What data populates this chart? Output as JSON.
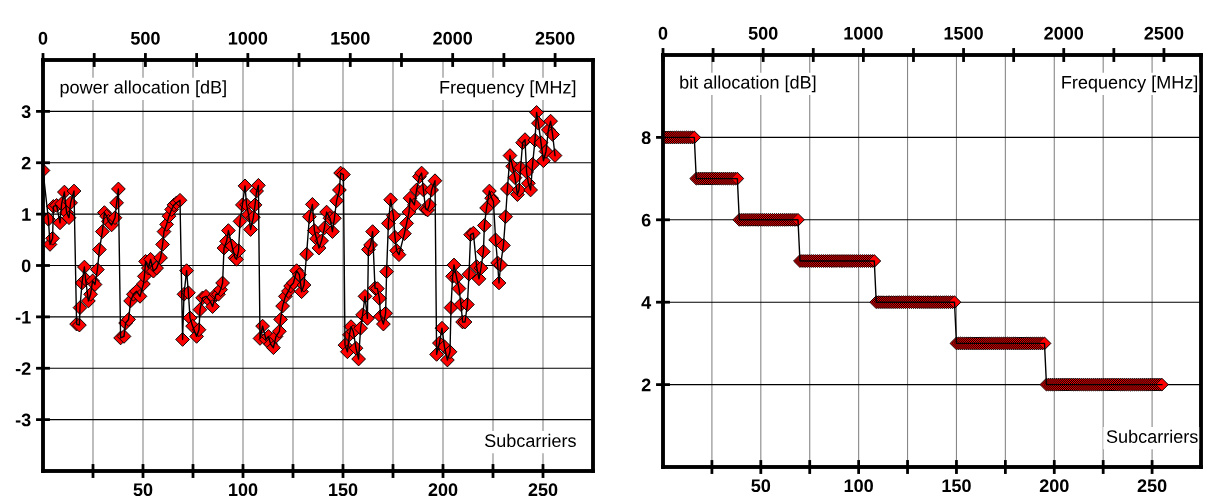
{
  "chart_data": [
    {
      "type": "line",
      "ylabel": "power allocation [dB]",
      "x2label": "Frequency [MHz]",
      "xlabel": "Subcarriers",
      "xlim": [
        0,
        275
      ],
      "xticks": [
        {
          "value": 25,
          "label": null
        },
        50,
        {
          "value": 75,
          "label": null
        },
        100,
        {
          "value": 125,
          "label": null
        },
        150,
        {
          "value": 175,
          "label": null
        },
        200,
        {
          "value": 225,
          "label": null
        },
        250
      ],
      "x2lim": [
        0,
        2685
      ],
      "x2ticks": [
        0,
        {
          "value": 250,
          "label": null
        },
        500,
        {
          "value": 750,
          "label": null
        },
        1000,
        {
          "value": 1250,
          "label": null
        },
        1500,
        {
          "value": 1750,
          "label": null
        },
        2000,
        {
          "value": 2250,
          "label": null
        },
        2500
      ],
      "ylim": [
        -4,
        4
      ],
      "yticks": [
        -3,
        -2,
        -1,
        0,
        1,
        2,
        3
      ],
      "grid": true,
      "marker": "diamond",
      "line_style": "solid",
      "series": [
        {
          "color": "#ff0000",
          "x": [
            0,
            2.7,
            3.5,
            4.8,
            5.2,
            6.8,
            8.5,
            9.3,
            10.7,
            11.8,
            13,
            13.8,
            15.5,
            16.8,
            18.2,
            18.5,
            19.5,
            20.7,
            21.3,
            22.7,
            23.8,
            24.8,
            26,
            27.2,
            28.2,
            29.7,
            30.7,
            31.8,
            32.7,
            34.3,
            36,
            36.8,
            37.7,
            38.8,
            40.5,
            41.3,
            42.8,
            43.8,
            45.2,
            46.8,
            48.5,
            50.2,
            50.7,
            51.3,
            52.7,
            53.8,
            55.2,
            56.8,
            58.8,
            59.8,
            60.5,
            61.8,
            63,
            64.3,
            65.5,
            66.8,
            68.5,
            69.8,
            70.5,
            71.8,
            72.7,
            73.5,
            74.8,
            76.8,
            78,
            78.5,
            79.8,
            81.5,
            83.5,
            84.8,
            86.5,
            87.7,
            88.8,
            89.8,
            90.5,
            91.8,
            92.7,
            94.5,
            96,
            96.8,
            97.8,
            98.5,
            99.7,
            101,
            101.8,
            102.8,
            103.8,
            105.2,
            106,
            106.8,
            107.7,
            108.5,
            109.8,
            111.5,
            112.7,
            113.8,
            115.2,
            116.5,
            118.2,
            118.8,
            119.8,
            121.2,
            122.7,
            123.8,
            125.2,
            126.8,
            128.2,
            129.3,
            130.5,
            131.8,
            133.2,
            134.7,
            135.7,
            136.8,
            138,
            139.3,
            140.7,
            141.8,
            143.5,
            144.7,
            145.7,
            146.8,
            148.2,
            148.8,
            150.2,
            151,
            152.2,
            153.2,
            154,
            155.2,
            156.5,
            157.8,
            158.8,
            159.8,
            161,
            162.2,
            162.7,
            163.8,
            164.8,
            166,
            167.2,
            168.2,
            168.8,
            170.2,
            171.3,
            171.8,
            172.7,
            173.8,
            175.2,
            176,
            176.8,
            178,
            180.7,
            181.8,
            183,
            183.5,
            185.7,
            186.8,
            188.2,
            189.3,
            190.2,
            191.3,
            192.3,
            193.2,
            194.3,
            196,
            196.8,
            198.2,
            199.5,
            200.7,
            202.2,
            203.5,
            204,
            204.8,
            205.5,
            206.8,
            208,
            209,
            209.8,
            211,
            212.2,
            213,
            213.8,
            215.2,
            216.8,
            218,
            219,
            220.2,
            220.7,
            221.8,
            223.2,
            224.3,
            225.2,
            226.3,
            227.3,
            228,
            228.8,
            230.2,
            231.3,
            232.2,
            233.5,
            234.8,
            236,
            237.2,
            238,
            238.8,
            239.8,
            241,
            241.8,
            242.7,
            243.8,
            244.8,
            246,
            246.8,
            247.7,
            249,
            250.2,
            251.5,
            252.7,
            253.8,
            254.8,
            256
          ],
          "values": [
            1.85,
            0.9,
            0.41,
            0.53,
            1.15,
            1.17,
            0.83,
            1.2,
            1.43,
            1.03,
            0.93,
            1.22,
            1.45,
            -1.14,
            -1.16,
            -0.82,
            -0.34,
            -0.03,
            -0.27,
            -0.69,
            -0.56,
            -0.3,
            -0.37,
            -0.08,
            0.31,
            0.66,
            1.03,
            0.96,
            0.86,
            0.79,
            0.93,
            1.22,
            1.49,
            -1.41,
            -1.38,
            -1.12,
            -1.05,
            -0.69,
            -0.56,
            -0.5,
            -0.6,
            -0.36,
            -0.21,
            0.08,
            -0.05,
            0.12,
            -0.11,
            -0.05,
            0.15,
            0.41,
            0.66,
            0.8,
            0.96,
            1.09,
            1.18,
            1.22,
            1.27,
            -1.44,
            -0.56,
            -0.1,
            -0.53,
            -1.02,
            -1.18,
            -1.38,
            -1.25,
            -0.86,
            -0.63,
            -0.6,
            -0.69,
            -0.8,
            -0.56,
            -0.56,
            -0.47,
            -0.34,
            0.34,
            0.47,
            0.68,
            0.38,
            0.15,
            0.12,
            0.29,
            0.86,
            1.18,
            1.55,
            1.18,
            0.99,
            0.7,
            0.94,
            1.18,
            1.45,
            1.56,
            -1.42,
            -1.18,
            -1.44,
            -1.38,
            -1.53,
            -1.6,
            -1.38,
            -1.28,
            -1.05,
            -0.79,
            -0.6,
            -0.5,
            -0.4,
            -0.34,
            -0.1,
            -0.18,
            -0.51,
            -0.38,
            0.22,
            0.95,
            1.19,
            0.68,
            0.52,
            0.34,
            0.48,
            0.73,
            1.04,
            0.92,
            0.66,
            0.92,
            1.26,
            1.47,
            1.8,
            1.77,
            -1.55,
            -1.68,
            -1.35,
            -1.19,
            -1.29,
            -1.61,
            -1.82,
            -1.22,
            -0.96,
            -0.6,
            -1.03,
            0.31,
            0.4,
            0.66,
            -0.44,
            -0.45,
            -0.64,
            -0.99,
            -1.14,
            -0.93,
            -0.12,
            0.82,
            1.28,
            0.97,
            0.55,
            0.29,
            0.21,
            0.62,
            0.82,
            1.04,
            1.31,
            1.18,
            1.47,
            1.73,
            1.8,
            1.47,
            1.1,
            1.08,
            1.18,
            1.47,
            1.65,
            -1.73,
            -1.51,
            -1.22,
            -1.58,
            -1.84,
            -1.68,
            -0.82,
            -0.21,
            0.01,
            -0.23,
            -0.45,
            -0.76,
            -1.1,
            -1.1,
            -0.76,
            -0.17,
            0.6,
            0.63,
            -0.02,
            -0.26,
            -0.05,
            0.27,
            0.78,
            1.12,
            1.45,
            1.31,
            1.25,
            0.5,
            0.05,
            -0.34,
            0.01,
            0.39,
            0.95,
            1.49,
            2.14,
            1.93,
            1.71,
            1.38,
            1.47,
            1.9,
            2.39,
            2.45,
            1.82,
            1.6,
            1.47,
            1.97,
            2.44,
            2.98,
            2.77,
            2.39,
            2.04,
            2.22,
            2.64,
            2.81,
            2.55,
            2.14
          ]
        }
      ]
    },
    {
      "type": "line",
      "ylabel": "bit allocation [dB]",
      "x2label": "Frequency [MHz]",
      "xlabel": "Subcarriers",
      "xlim": [
        0,
        275
      ],
      "xticks": [
        {
          "value": 25,
          "label": null
        },
        50,
        {
          "value": 75,
          "label": null
        },
        100,
        {
          "value": 125,
          "label": null
        },
        150,
        {
          "value": 175,
          "label": null
        },
        200,
        {
          "value": 225,
          "label": null
        },
        250
      ],
      "x2lim": [
        0,
        2685
      ],
      "x2ticks": [
        0,
        {
          "value": 250,
          "label": null
        },
        500,
        {
          "value": 750,
          "label": null
        },
        1000,
        {
          "value": 1250,
          "label": null
        },
        1500,
        {
          "value": 1750,
          "label": null
        },
        2000,
        {
          "value": 2250,
          "label": null
        },
        2500
      ],
      "ylim": [
        0,
        10
      ],
      "yticks": [
        2,
        4,
        6,
        8
      ],
      "grid": true,
      "marker": "diamond",
      "line_style": "solid",
      "series": [
        {
          "color": "#ff0000",
          "x": [
            0,
            1,
            2,
            3,
            4,
            5,
            6,
            7,
            8,
            9,
            10,
            11,
            12,
            13,
            14,
            15,
            16,
            17,
            18,
            19,
            20,
            21,
            22,
            23,
            24,
            25,
            26,
            27,
            28,
            29,
            30,
            31,
            32,
            33,
            34,
            35,
            36,
            37,
            38,
            39,
            40,
            41,
            42,
            43,
            44,
            45,
            46,
            47,
            48,
            49,
            50,
            51,
            52,
            53,
            54,
            55,
            56,
            57,
            58,
            59,
            60,
            61,
            62,
            63,
            64,
            65,
            66,
            67,
            68,
            69,
            70,
            71,
            72,
            73,
            74,
            75,
            76,
            77,
            78,
            79,
            80,
            81,
            82,
            83,
            84,
            85,
            86,
            87,
            88,
            89,
            90,
            91,
            92,
            93,
            94,
            95,
            96,
            97,
            98,
            99,
            100,
            101,
            102,
            103,
            104,
            105,
            106,
            107,
            108,
            109,
            110,
            111,
            112,
            113,
            114,
            115,
            116,
            117,
            118,
            119,
            120,
            121,
            122,
            123,
            124,
            125,
            126,
            127,
            128,
            129,
            130,
            131,
            132,
            133,
            134,
            135,
            136,
            137,
            138,
            139,
            140,
            141,
            142,
            143,
            144,
            145,
            146,
            147,
            148,
            149,
            150,
            151,
            152,
            153,
            154,
            155,
            156,
            157,
            158,
            159,
            160,
            161,
            162,
            163,
            164,
            165,
            166,
            167,
            168,
            169,
            170,
            171,
            172,
            173,
            174,
            175,
            176,
            177,
            178,
            179,
            180,
            181,
            182,
            183,
            184,
            185,
            186,
            187,
            188,
            189,
            190,
            191,
            192,
            193,
            194,
            195,
            196,
            197,
            198,
            199,
            200,
            201,
            202,
            203,
            204,
            205,
            206,
            207,
            208,
            209,
            210,
            211,
            212,
            213,
            214,
            215,
            216,
            217,
            218,
            219,
            220,
            221,
            222,
            223,
            224,
            225,
            226,
            227,
            228,
            229,
            230,
            231,
            232,
            233,
            234,
            235,
            236,
            237,
            238,
            239,
            240,
            241,
            242,
            243,
            244,
            245,
            246,
            247,
            248,
            249,
            250,
            251,
            252,
            253,
            254,
            255
          ],
          "values": [
            8,
            8,
            8,
            8,
            8,
            8,
            8,
            8,
            8,
            8,
            8,
            8,
            8,
            8,
            8,
            8,
            8,
            7,
            7,
            7,
            7,
            7,
            7,
            7,
            7,
            7,
            7,
            7,
            7,
            7,
            7,
            7,
            7,
            7,
            7,
            7,
            7,
            7,
            7,
            6,
            6,
            6,
            6,
            6,
            6,
            6,
            6,
            6,
            6,
            6,
            6,
            6,
            6,
            6,
            6,
            6,
            6,
            6,
            6,
            6,
            6,
            6,
            6,
            6,
            6,
            6,
            6,
            6,
            6,
            6,
            5,
            5,
            5,
            5,
            5,
            5,
            5,
            5,
            5,
            5,
            5,
            5,
            5,
            5,
            5,
            5,
            5,
            5,
            5,
            5,
            5,
            5,
            5,
            5,
            5,
            5,
            5,
            5,
            5,
            5,
            5,
            5,
            5,
            5,
            5,
            5,
            5,
            5,
            5,
            4,
            4,
            4,
            4,
            4,
            4,
            4,
            4,
            4,
            4,
            4,
            4,
            4,
            4,
            4,
            4,
            4,
            4,
            4,
            4,
            4,
            4,
            4,
            4,
            4,
            4,
            4,
            4,
            4,
            4,
            4,
            4,
            4,
            4,
            4,
            4,
            4,
            4,
            4,
            4,
            4,
            3,
            3,
            3,
            3,
            3,
            3,
            3,
            3,
            3,
            3,
            3,
            3,
            3,
            3,
            3,
            3,
            3,
            3,
            3,
            3,
            3,
            3,
            3,
            3,
            3,
            3,
            3,
            3,
            3,
            3,
            3,
            3,
            3,
            3,
            3,
            3,
            3,
            3,
            3,
            3,
            3,
            3,
            3,
            3,
            3,
            3,
            2,
            2,
            2,
            2,
            2,
            2,
            2,
            2,
            2,
            2,
            2,
            2,
            2,
            2,
            2,
            2,
            2,
            2,
            2,
            2,
            2,
            2,
            2,
            2,
            2,
            2,
            2,
            2,
            2,
            2,
            2,
            2,
            2,
            2,
            2,
            2,
            2,
            2,
            2,
            2,
            2,
            2,
            2,
            2,
            2,
            2,
            2,
            2,
            2,
            2,
            2,
            2,
            2,
            2,
            2,
            2,
            2,
            2,
            2,
            2
          ]
        }
      ]
    }
  ]
}
